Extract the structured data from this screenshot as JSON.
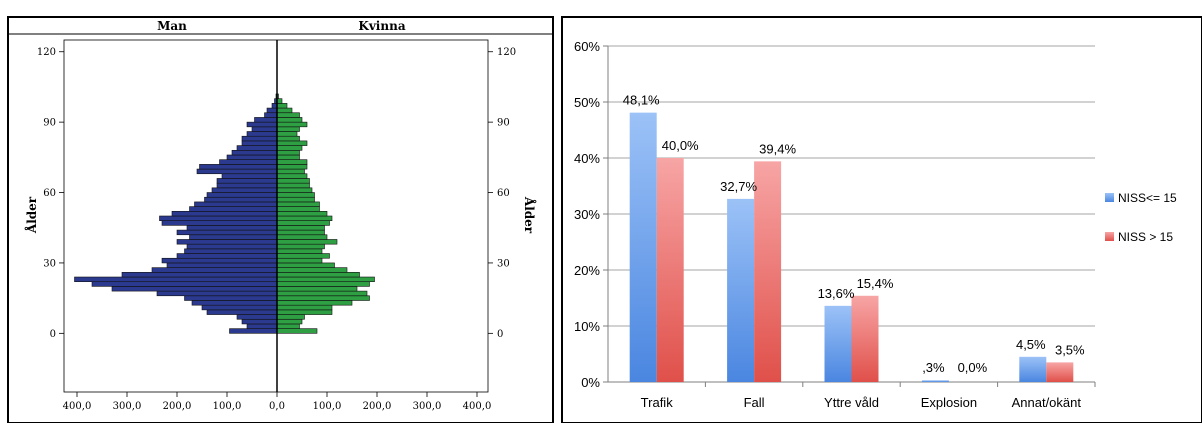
{
  "chart_data": [
    {
      "type": "bar",
      "orientation": "horizontal",
      "subtype": "population-pyramid",
      "panel_labels": [
        "Man",
        "Kvinna"
      ],
      "ylabel": "Ålder",
      "y_ticks": [
        "0",
        "30",
        "60",
        "90",
        "120"
      ],
      "x_ticks": [
        "400,0",
        "300,0",
        "200,0",
        "100,0",
        "0,0",
        "100,0",
        "200,0",
        "300,0",
        "400,0"
      ],
      "xlim": [
        0,
        400
      ],
      "ylim": [
        -25,
        125
      ],
      "bin_width": 2,
      "colors": {
        "Man": "#2b3a8f",
        "Kvinna": "#2ea043"
      },
      "ages": [
        0,
        2,
        4,
        6,
        8,
        10,
        12,
        14,
        16,
        18,
        20,
        22,
        24,
        26,
        28,
        30,
        32,
        34,
        36,
        38,
        40,
        42,
        44,
        46,
        48,
        50,
        52,
        54,
        56,
        58,
        60,
        62,
        64,
        66,
        68,
        70,
        72,
        74,
        76,
        78,
        80,
        82,
        84,
        86,
        88,
        90,
        92,
        94,
        96,
        98,
        100,
        102,
        104,
        106,
        108,
        110,
        112,
        114,
        116,
        118,
        120
      ],
      "series": [
        {
          "name": "Man",
          "values": [
            95,
            60,
            70,
            80,
            140,
            150,
            170,
            185,
            240,
            330,
            370,
            405,
            310,
            250,
            220,
            230,
            200,
            185,
            180,
            200,
            175,
            200,
            180,
            230,
            235,
            210,
            175,
            165,
            145,
            140,
            130,
            120,
            120,
            110,
            160,
            155,
            115,
            100,
            90,
            80,
            70,
            70,
            60,
            50,
            60,
            45,
            25,
            20,
            10,
            5,
            2,
            0,
            0,
            0,
            0,
            0,
            0,
            0,
            0,
            0,
            0
          ]
        },
        {
          "name": "Kvinna",
          "values": [
            80,
            45,
            50,
            55,
            110,
            110,
            150,
            185,
            180,
            160,
            185,
            195,
            165,
            140,
            115,
            90,
            105,
            90,
            95,
            120,
            100,
            95,
            95,
            105,
            110,
            100,
            85,
            85,
            75,
            75,
            70,
            65,
            65,
            60,
            55,
            60,
            60,
            45,
            45,
            50,
            60,
            45,
            40,
            45,
            60,
            50,
            45,
            30,
            20,
            10,
            3,
            0,
            0,
            0,
            0,
            0,
            0,
            0,
            0,
            0,
            0
          ]
        }
      ]
    },
    {
      "type": "bar",
      "categories": [
        "Trafik",
        "Fall",
        "Yttre våld",
        "Explosion",
        "Annat/okänt"
      ],
      "series": [
        {
          "name": "NISS<= 15",
          "values": [
            48.1,
            32.7,
            13.6,
            0.3,
            4.5
          ],
          "labels": [
            "48,1%",
            "32,7%",
            "13,6%",
            ",3%",
            "4,5%"
          ],
          "color": "#6fa3ef"
        },
        {
          "name": "NISS > 15",
          "values": [
            40.0,
            39.4,
            15.4,
            0.0,
            3.5
          ],
          "labels": [
            "40,0%",
            "39,4%",
            "15,4%",
            "0,0%",
            "3,5%"
          ],
          "color": "#f08080"
        }
      ],
      "y_ticks": [
        "0%",
        "10%",
        "20%",
        "30%",
        "40%",
        "50%",
        "60%"
      ],
      "ylim": [
        0,
        60
      ],
      "legend": "right",
      "grid": true
    }
  ]
}
